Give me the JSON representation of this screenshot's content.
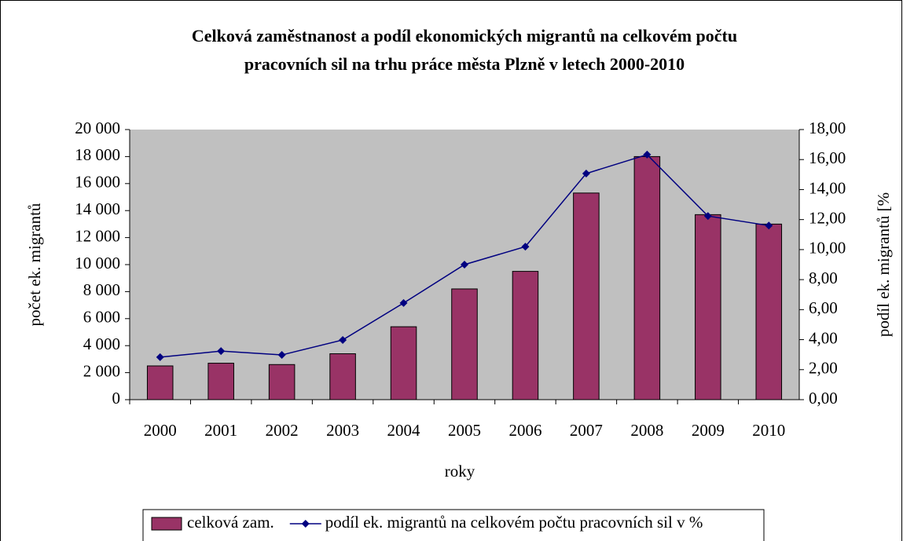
{
  "chart_data": {
    "type": "bar+line",
    "title": [
      "Celková zaměstnanost a podíl ekonomických migrantů na celkovém počtu",
      "pracovních sil na trhu práce města Plzně v letech 2000-2010"
    ],
    "x_label": "roky",
    "y_label": "počet ek. migrantů",
    "y2_label": "podíl ek. migrantů [%",
    "categories": [
      "2000",
      "2001",
      "2002",
      "2003",
      "2004",
      "2005",
      "2006",
      "2007",
      "2008",
      "2009",
      "2010"
    ],
    "series": [
      {
        "name": "celková zam.",
        "type": "bar",
        "color": "#993366",
        "values": [
          2500,
          2700,
          2600,
          3400,
          5400,
          8200,
          9500,
          15300,
          18000,
          13700,
          13000
        ]
      },
      {
        "name": "podíl ek. migrantů na celkovém počtu pracovních sil v %",
        "type": "line",
        "axis": "y2",
        "color": "#000080",
        "values": [
          2.83,
          3.24,
          2.98,
          3.98,
          6.44,
          9.0,
          10.2,
          15.07,
          16.33,
          12.24,
          11.6
        ]
      }
    ],
    "ylim": [
      0,
      20000
    ],
    "yticks": [
      0,
      {
        "value": 2000,
        "label": "2 000"
      },
      {
        "value": 4000,
        "label": "4 000"
      },
      {
        "value": 6000,
        "label": "6 000"
      },
      {
        "value": 8000,
        "label": "8 000"
      },
      {
        "value": 10000,
        "label": "10 000"
      },
      {
        "value": 12000,
        "label": "12 000"
      },
      {
        "value": 14000,
        "label": "14 000"
      },
      {
        "value": 16000,
        "label": "16 000"
      },
      {
        "value": 18000,
        "label": "18 000"
      },
      {
        "value": 20000,
        "label": "20 000"
      }
    ],
    "y2lim": [
      0,
      18
    ],
    "y2ticks": [
      {
        "value": 0,
        "label": "0,00"
      },
      {
        "value": 2,
        "label": "2,00"
      },
      {
        "value": 4,
        "label": "4,00"
      },
      {
        "value": 6,
        "label": "6,00"
      },
      {
        "value": 8,
        "label": "8,00"
      },
      {
        "value": 10,
        "label": "10,00"
      },
      {
        "value": 12,
        "label": "12,00"
      },
      {
        "value": 14,
        "label": "14,00"
      },
      {
        "value": 16,
        "label": "16,00"
      },
      {
        "value": 18,
        "label": "18,00"
      }
    ],
    "legend": "bottom"
  }
}
